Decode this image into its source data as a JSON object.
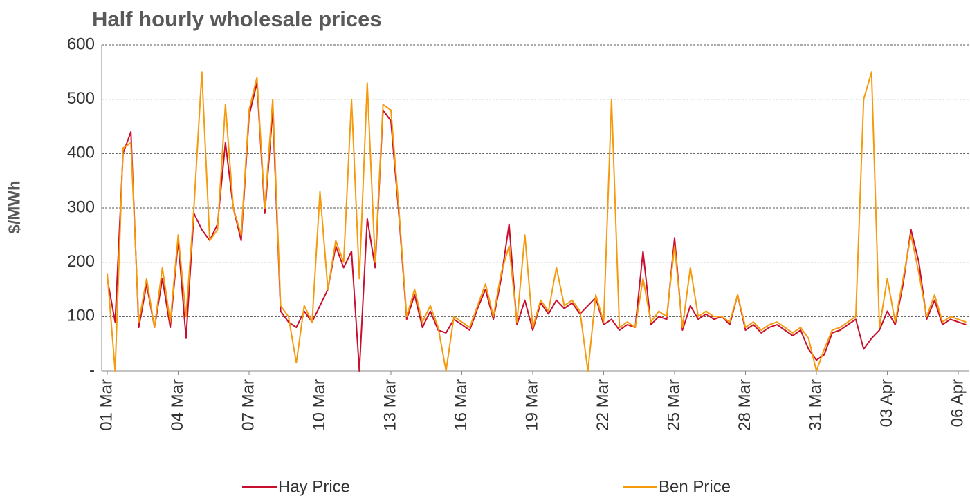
{
  "chart_data": {
    "type": "line",
    "title": "Half hourly wholesale prices",
    "y_label": "$/MWh",
    "categories": [
      "01 Mar",
      null,
      null,
      null,
      null,
      null,
      null,
      null,
      null,
      "04 Mar",
      null,
      null,
      null,
      null,
      null,
      null,
      null,
      null,
      "07 Mar",
      null,
      null,
      null,
      null,
      null,
      null,
      null,
      null,
      "10 Mar",
      null,
      null,
      null,
      null,
      null,
      null,
      null,
      null,
      "13 Mar",
      null,
      null,
      null,
      null,
      null,
      null,
      null,
      null,
      "16 Mar",
      null,
      null,
      null,
      null,
      null,
      null,
      null,
      null,
      "19 Mar",
      null,
      null,
      null,
      null,
      null,
      null,
      null,
      null,
      "22 Mar",
      null,
      null,
      null,
      null,
      null,
      null,
      null,
      null,
      "25 Mar",
      null,
      null,
      null,
      null,
      null,
      null,
      null,
      null,
      "28 Mar",
      null,
      null,
      null,
      null,
      null,
      null,
      null,
      null,
      "31 Mar",
      null,
      null,
      null,
      null,
      null,
      null,
      null,
      null,
      "03 Apr",
      null,
      null,
      null,
      null,
      null,
      null,
      null,
      null,
      "06 Apr",
      null
    ],
    "series": [
      {
        "name": "Hay Price",
        "color": "#c8102e",
        "values": [
          170,
          90,
          400,
          440,
          80,
          160,
          80,
          170,
          80,
          240,
          60,
          290,
          260,
          240,
          270,
          420,
          300,
          240,
          470,
          530,
          290,
          480,
          110,
          90,
          80,
          110,
          90,
          120,
          150,
          230,
          190,
          220,
          0,
          280,
          190,
          480,
          460,
          290,
          95,
          140,
          80,
          110,
          75,
          70,
          95,
          85,
          75,
          115,
          150,
          95,
          170,
          270,
          85,
          130,
          75,
          125,
          105,
          130,
          115,
          125,
          105,
          120,
          135,
          85,
          95,
          75,
          85,
          80,
          220,
          85,
          100,
          95,
          245,
          75,
          120,
          95,
          105,
          95,
          100,
          85,
          140,
          75,
          85,
          70,
          80,
          85,
          75,
          65,
          75,
          40,
          20,
          30,
          70,
          75,
          85,
          95,
          40,
          60,
          75,
          110,
          85,
          160,
          260,
          200,
          95,
          130,
          85,
          95,
          90,
          85
        ]
      },
      {
        "name": "Ben Price",
        "color": "#f59a0c",
        "values": [
          180,
          0,
          410,
          420,
          90,
          170,
          80,
          190,
          90,
          250,
          100,
          300,
          550,
          240,
          260,
          490,
          300,
          250,
          480,
          540,
          300,
          500,
          120,
          100,
          15,
          120,
          90,
          330,
          150,
          240,
          200,
          500,
          170,
          530,
          200,
          490,
          480,
          300,
          100,
          150,
          90,
          120,
          80,
          0,
          100,
          90,
          80,
          120,
          160,
          100,
          180,
          230,
          90,
          250,
          80,
          130,
          110,
          190,
          120,
          130,
          110,
          0,
          140,
          90,
          500,
          80,
          90,
          80,
          170,
          90,
          110,
          100,
          230,
          80,
          190,
          100,
          110,
          100,
          100,
          90,
          140,
          80,
          90,
          75,
          85,
          90,
          80,
          70,
          80,
          60,
          0,
          40,
          75,
          80,
          90,
          100,
          500,
          550,
          80,
          170,
          90,
          170,
          250,
          180,
          100,
          140,
          90,
          100,
          95,
          90
        ]
      }
    ],
    "ylim": [
      0,
      600
    ],
    "yticks": [
      {
        "value": 0,
        "label": "-"
      },
      100,
      200,
      300,
      400,
      500,
      600
    ],
    "grid": true
  }
}
